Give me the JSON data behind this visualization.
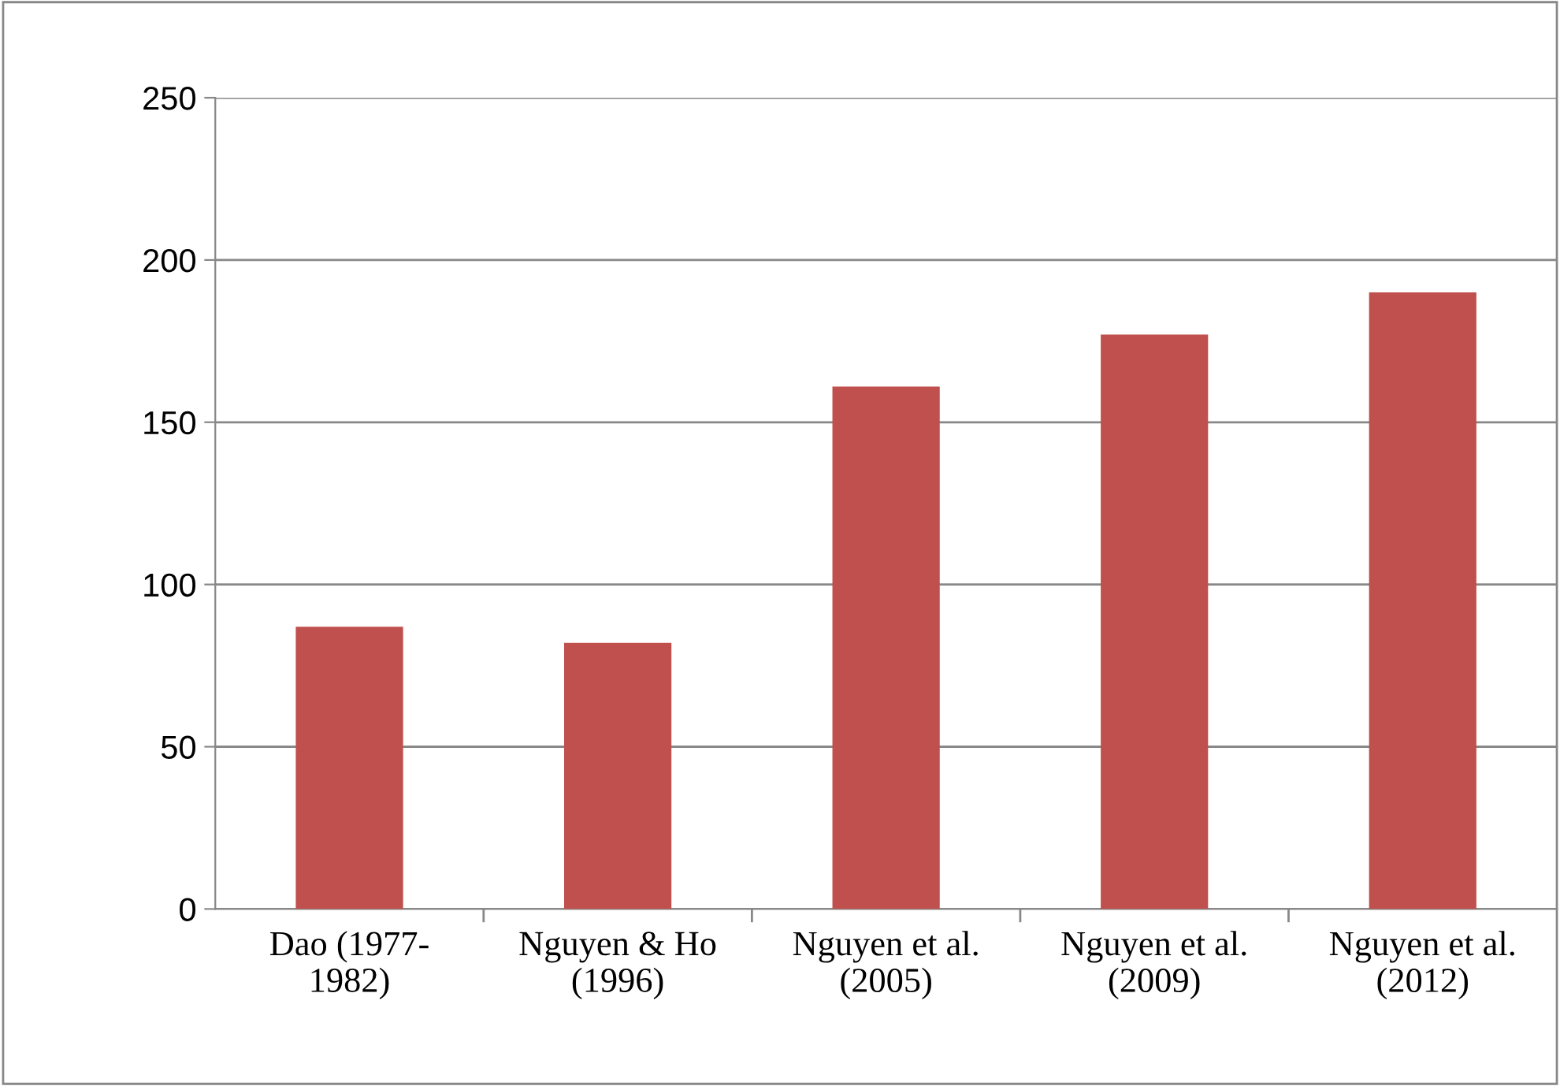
{
  "chart_data": {
    "type": "bar",
    "categories": [
      "Dao (1977-\n1982)",
      "Nguyen & Ho\n(1996)",
      "Nguyen et al.\n(2005)",
      "Nguyen et al.\n(2009)",
      "Nguyen et al.\n(2012)"
    ],
    "values": [
      87,
      82,
      161,
      177,
      190
    ],
    "color": "#c0504d",
    "ylim": [
      0,
      250
    ],
    "yticks": [
      0,
      50,
      100,
      150,
      200,
      250
    ],
    "grid": "y",
    "legend": false
  }
}
